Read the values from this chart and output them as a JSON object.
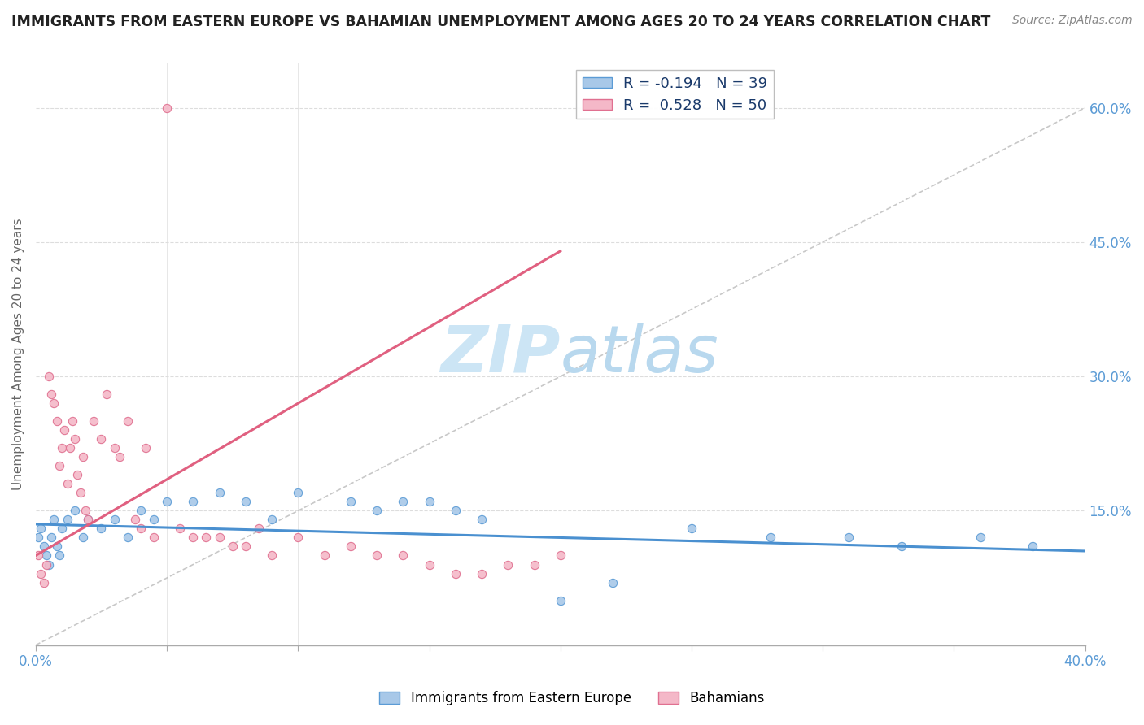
{
  "title": "IMMIGRANTS FROM EASTERN EUROPE VS BAHAMIAN UNEMPLOYMENT AMONG AGES 20 TO 24 YEARS CORRELATION CHART",
  "source_text": "Source: ZipAtlas.com",
  "ylabel": "Unemployment Among Ages 20 to 24 years",
  "xlim": [
    0.0,
    0.4
  ],
  "ylim": [
    0.0,
    0.65
  ],
  "x_ticks": [
    0.0,
    0.05,
    0.1,
    0.15,
    0.2,
    0.25,
    0.3,
    0.35,
    0.4
  ],
  "y_ticks_right": [
    0.0,
    0.15,
    0.3,
    0.45,
    0.6
  ],
  "legend_label1": "R = -0.194   N = 39",
  "legend_label2": "R =  0.528   N = 50",
  "blue_color": "#a8c8e8",
  "pink_color": "#f4b8c8",
  "blue_edge_color": "#5b9bd5",
  "pink_edge_color": "#e07090",
  "blue_line_color": "#4a90d0",
  "pink_line_color": "#e06080",
  "title_color": "#222222",
  "source_color": "#888888",
  "watermark_color": "#cce5f5",
  "grid_color": "#dddddd",
  "axis_label_color": "#5b9bd5",
  "blue_scatter_x": [
    0.001,
    0.002,
    0.003,
    0.004,
    0.005,
    0.006,
    0.007,
    0.008,
    0.009,
    0.01,
    0.012,
    0.015,
    0.018,
    0.02,
    0.025,
    0.03,
    0.035,
    0.04,
    0.045,
    0.05,
    0.06,
    0.07,
    0.08,
    0.09,
    0.1,
    0.12,
    0.13,
    0.14,
    0.15,
    0.16,
    0.17,
    0.2,
    0.22,
    0.25,
    0.28,
    0.31,
    0.33,
    0.36,
    0.38
  ],
  "blue_scatter_y": [
    0.12,
    0.13,
    0.11,
    0.1,
    0.09,
    0.12,
    0.14,
    0.11,
    0.1,
    0.13,
    0.14,
    0.15,
    0.12,
    0.14,
    0.13,
    0.14,
    0.12,
    0.15,
    0.14,
    0.16,
    0.16,
    0.17,
    0.16,
    0.14,
    0.17,
    0.16,
    0.15,
    0.16,
    0.16,
    0.15,
    0.14,
    0.05,
    0.07,
    0.13,
    0.12,
    0.12,
    0.11,
    0.12,
    0.11
  ],
  "pink_scatter_x": [
    0.001,
    0.002,
    0.003,
    0.004,
    0.005,
    0.006,
    0.007,
    0.008,
    0.009,
    0.01,
    0.011,
    0.012,
    0.013,
    0.014,
    0.015,
    0.016,
    0.017,
    0.018,
    0.019,
    0.02,
    0.022,
    0.025,
    0.027,
    0.03,
    0.032,
    0.035,
    0.038,
    0.04,
    0.042,
    0.045,
    0.05,
    0.055,
    0.06,
    0.065,
    0.07,
    0.075,
    0.08,
    0.085,
    0.09,
    0.1,
    0.11,
    0.12,
    0.13,
    0.14,
    0.15,
    0.16,
    0.17,
    0.18,
    0.19,
    0.2
  ],
  "pink_scatter_y": [
    0.1,
    0.08,
    0.07,
    0.09,
    0.3,
    0.28,
    0.27,
    0.25,
    0.2,
    0.22,
    0.24,
    0.18,
    0.22,
    0.25,
    0.23,
    0.19,
    0.17,
    0.21,
    0.15,
    0.14,
    0.25,
    0.23,
    0.28,
    0.22,
    0.21,
    0.25,
    0.14,
    0.13,
    0.22,
    0.12,
    0.6,
    0.13,
    0.12,
    0.12,
    0.12,
    0.11,
    0.11,
    0.13,
    0.1,
    0.12,
    0.1,
    0.11,
    0.1,
    0.1,
    0.09,
    0.08,
    0.08,
    0.09,
    0.09,
    0.1
  ],
  "blue_trend_x": [
    0.0,
    0.4
  ],
  "blue_trend_y": [
    0.135,
    0.105
  ],
  "pink_trend_x": [
    0.0,
    0.2
  ],
  "pink_trend_y": [
    0.1,
    0.44
  ],
  "ref_line_x": [
    0.0,
    0.4
  ],
  "ref_line_y": [
    0.0,
    0.6
  ],
  "figsize": [
    14.06,
    8.92
  ],
  "dpi": 100
}
